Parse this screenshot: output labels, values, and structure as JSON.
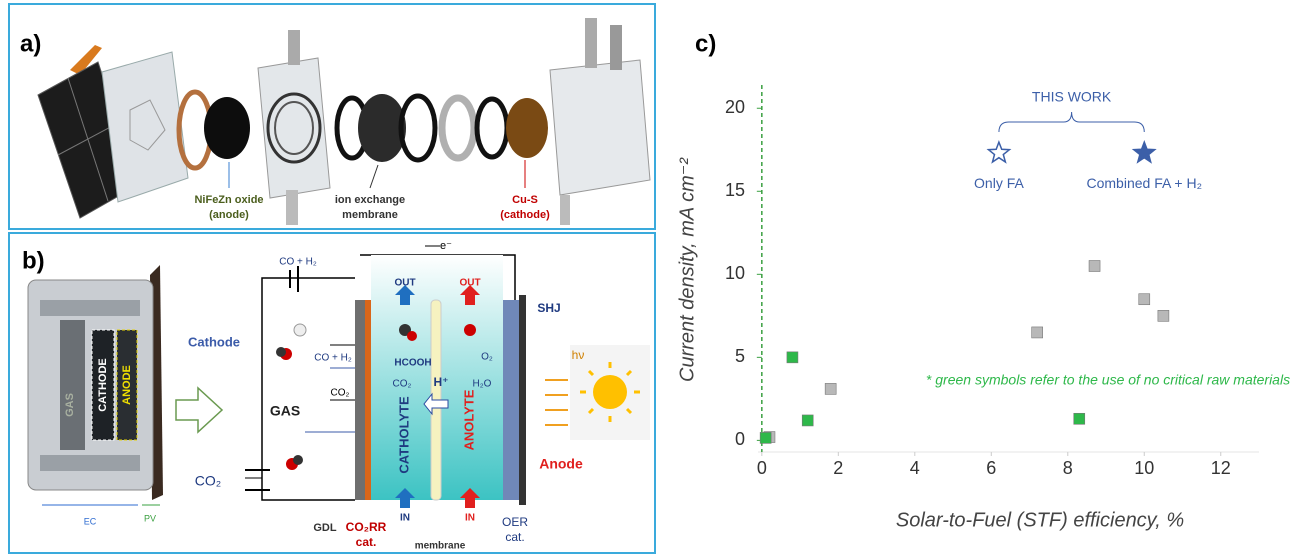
{
  "panel_a": {
    "label": "a)",
    "callouts": [
      [
        "NiFeZn oxide",
        "(anode)"
      ],
      [
        "ion exchange",
        "membrane"
      ],
      [
        "Cu-S",
        "(cathode)"
      ]
    ]
  },
  "panel_b": {
    "labels": [
      "b)",
      "CO + H₂",
      "Cathode",
      "CO + H₂",
      "CO₂",
      "GAS",
      "CO₂",
      "e⁻",
      "OUT",
      "OUT",
      "HCOOH",
      "CO₂",
      "H⁺",
      "O₂",
      "H₂O",
      "SHJ",
      "hν",
      "CATHOLYTE",
      "ANOLYTE",
      "IN",
      "IN",
      "Anode",
      "GDL",
      "CO₂RR",
      "cat.",
      "membrane",
      "OER",
      "cat.",
      "EC",
      "PV",
      "GAS",
      "CATHODE",
      "ANODE"
    ]
  },
  "chart_data": {
    "type": "scatter",
    "panel_label": "c)",
    "xlabel": "Solar-to-Fuel (STF) efficiency, %",
    "ylabel": "Current density, mA cm⁻²",
    "xlim": [
      -0.1,
      13
    ],
    "ylim": [
      -0.7,
      21.4
    ],
    "xticks": [
      0,
      2,
      4,
      6,
      8,
      10,
      12
    ],
    "yticks": [
      0,
      5,
      10,
      15,
      20
    ],
    "annotation": "THIS WORK",
    "note": "* green symbols refer to the use of no critical raw materials",
    "series": [
      {
        "color": "#b8b8b8",
        "marker": "square",
        "x": [
          0.2,
          1.8,
          7.2,
          8.7,
          10,
          10.5
        ],
        "values": [
          0.2,
          3.1,
          6.5,
          10.5,
          8.5,
          7.5
        ]
      },
      {
        "color": "#2eb84a",
        "marker": "square",
        "x": [
          0.1,
          0.8,
          1.2,
          8.3
        ],
        "values": [
          0.15,
          5,
          1.2,
          1.3
        ]
      },
      {
        "name": "Only FA",
        "color": "#3c5fa8",
        "marker": "star-open",
        "x": [
          6.2
        ],
        "values": [
          17.3
        ]
      },
      {
        "name": "Combined FA + H₂",
        "color": "#3c5fa8",
        "marker": "star",
        "x": [
          10
        ],
        "values": [
          17.3
        ]
      }
    ]
  }
}
